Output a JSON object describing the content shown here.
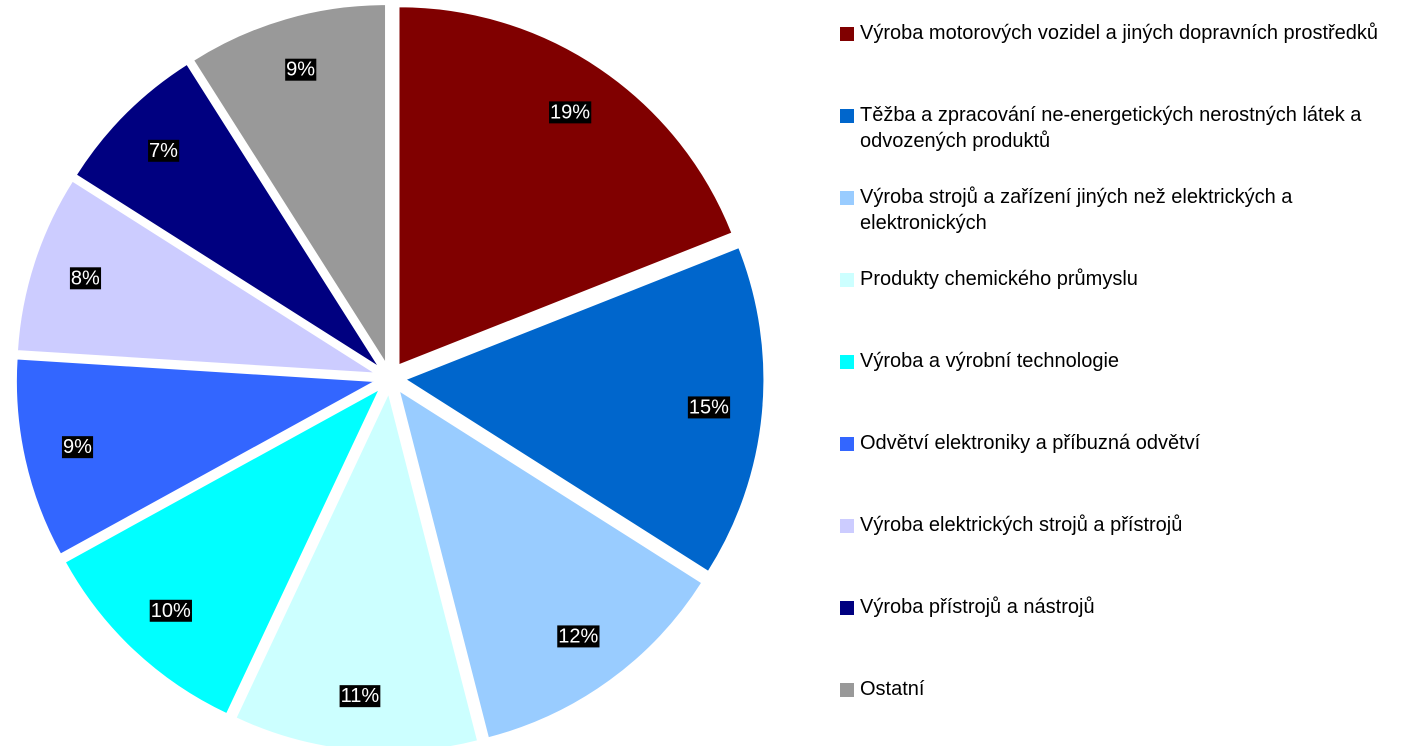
{
  "chart_data": {
    "type": "pie",
    "categories": [
      "Výroba motorových vozidel a jiných dopravních prostředků",
      "Těžba a zpracování ne-energetických nerostných látek a odvozených produktů",
      "Výroba strojů a zařízení jiných než elektrických a elektronických",
      "Produkty chemického průmyslu",
      "Výroba a výrobní technologie",
      "Odvětví elektroniky a příbuzná odvětví",
      "Výroba elektrických strojů a přístrojů",
      "Výroba přístrojů a nástrojů",
      "Ostatní"
    ],
    "values": [
      19,
      15,
      12,
      11,
      10,
      9,
      8,
      7,
      9
    ],
    "value_labels": [
      "19%",
      "15%",
      "12%",
      "11%",
      "10%",
      "9%",
      "8%",
      "7%",
      "9%"
    ],
    "colors": [
      "#800000",
      "#0066cc",
      "#99ccff",
      "#ccffff",
      "#00ffff",
      "#3366ff",
      "#ccccff",
      "#000080",
      "#999999"
    ],
    "legend": "right"
  }
}
